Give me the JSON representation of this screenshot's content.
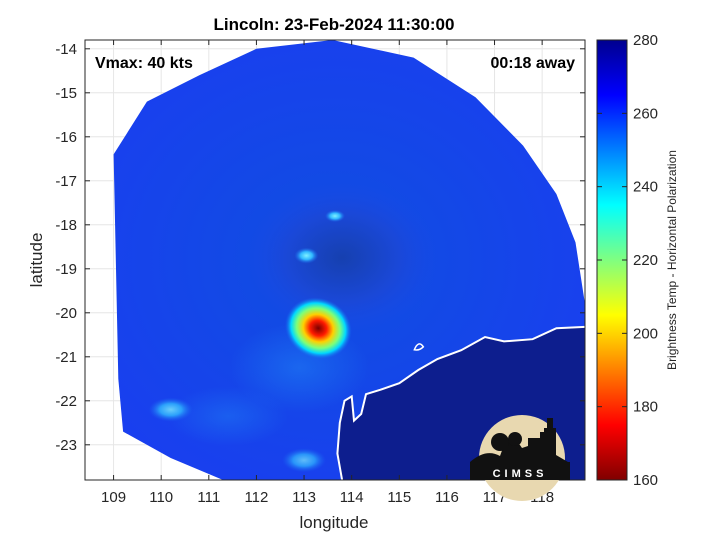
{
  "chart_data": {
    "type": "heatmap",
    "title": "Lincoln: 23-Feb-2024 11:30:00",
    "xlabel": "longitude",
    "ylabel": "latitude",
    "xlim": [
      108.4,
      118.9
    ],
    "ylim": [
      -23.8,
      -13.8
    ],
    "xticks": [
      109,
      110,
      111,
      112,
      113,
      114,
      115,
      116,
      117,
      118
    ],
    "yticks": [
      -14,
      -15,
      -16,
      -17,
      -18,
      -19,
      -20,
      -21,
      -22,
      -23
    ],
    "grid": true,
    "annotations": {
      "vmax": "Vmax: 40 kts",
      "time_away": "00:18 away"
    },
    "colorbar": {
      "label": "Brightness Temp - Horizontal Polarization",
      "range": [
        160,
        280
      ],
      "ticks": [
        160,
        180,
        200,
        220,
        240,
        260,
        280
      ],
      "colormap": "jet"
    },
    "storm_center": {
      "lon": 113.3,
      "lat": -20.35
    },
    "cold_cores": [
      {
        "lon": 113.3,
        "lat": -20.35,
        "min_temp": 165
      },
      {
        "lon": 113.05,
        "lat": -18.7,
        "min_temp": 235
      },
      {
        "lon": 113.65,
        "lat": -17.8,
        "min_temp": 238
      }
    ],
    "logo": "CIMSS"
  }
}
